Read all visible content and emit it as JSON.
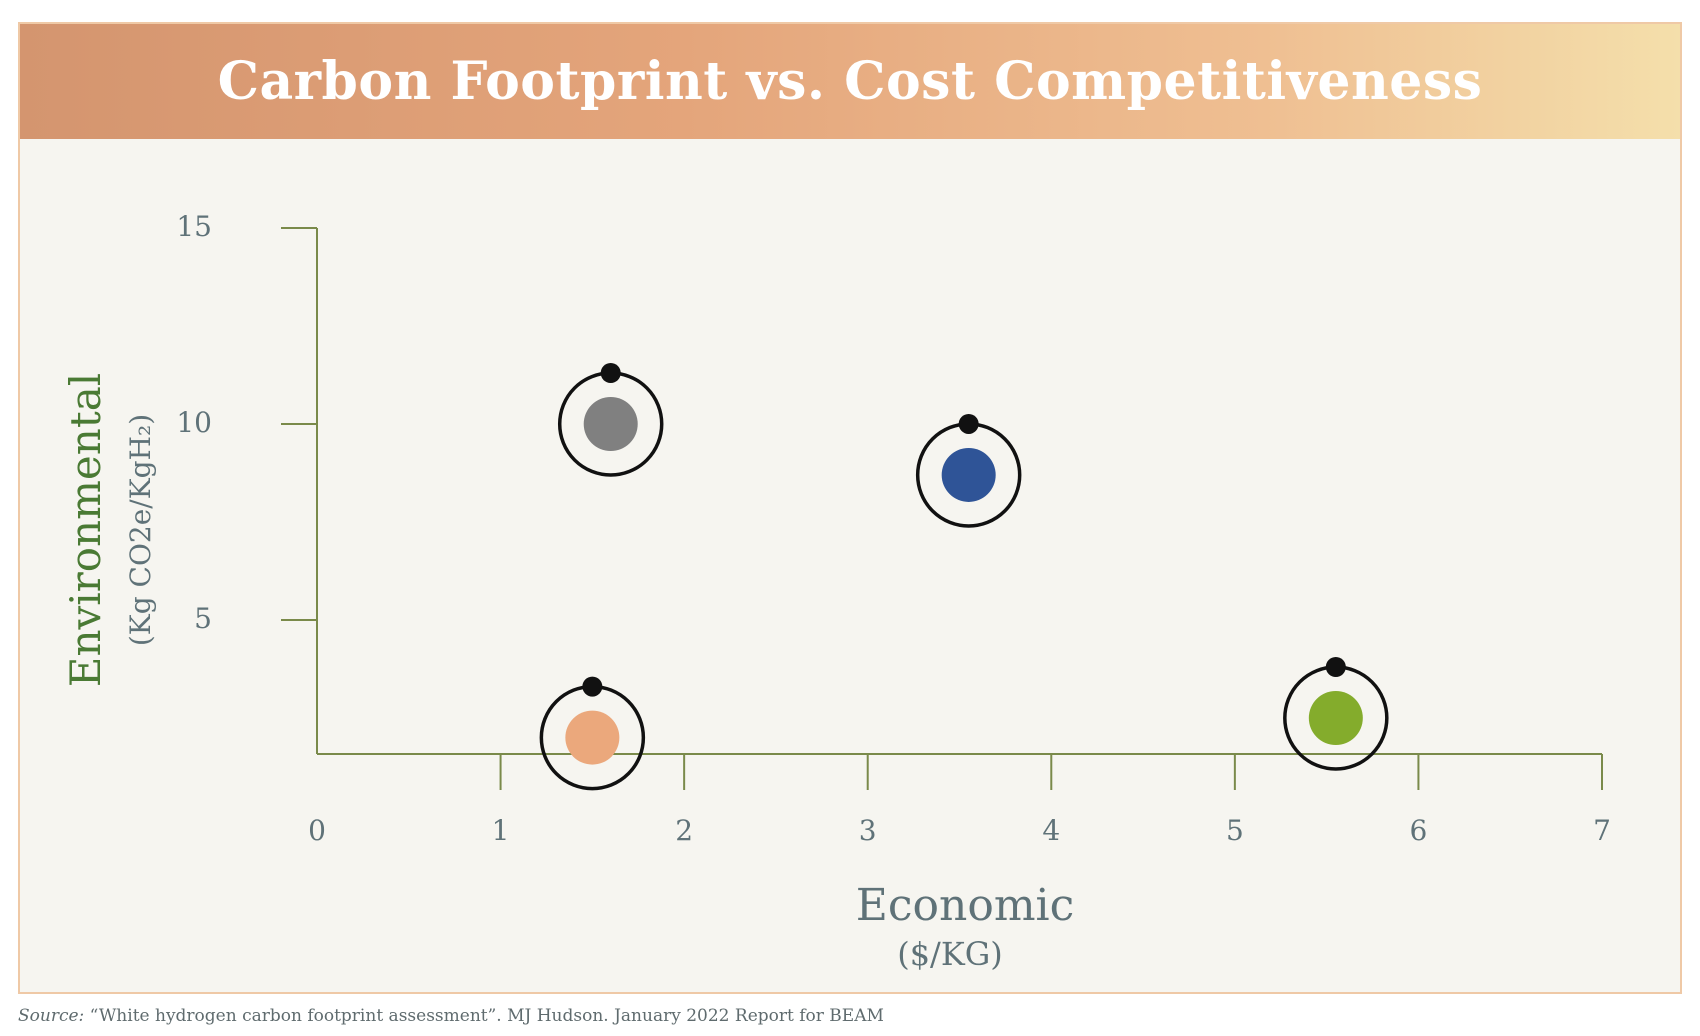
{
  "header": {
    "title": "Carbon Footprint vs. Cost Competitiveness"
  },
  "footer": {
    "source_label": "Source:",
    "source_text": "“White hydrogen carbon footprint assessment”. MJ Hudson. January 2022 Report for BEAM"
  },
  "colors": {
    "axis": "#7a8a4a",
    "ring": "#111111",
    "title_green": "#4a7a34",
    "label_gray": "#5f7278"
  },
  "chart_data": {
    "type": "scatter",
    "ylabel": "Environmental",
    "ylabel_unit": "(Kg CO2e/KgH₂)",
    "xlabel": "Economic",
    "xlabel_unit": "($/KG)",
    "xlim": [
      0,
      7
    ],
    "ylim": [
      1.5,
      15
    ],
    "x_ticks": [
      0,
      1,
      2,
      3,
      4,
      5,
      6,
      7
    ],
    "y_ticks": [
      5,
      10,
      15
    ],
    "grid": false,
    "points": [
      {
        "x": 1.6,
        "y": 10.0,
        "color": "#808080"
      },
      {
        "x": 3.55,
        "y": 8.7,
        "color": "#2f5497"
      },
      {
        "x": 1.5,
        "y": 2.0,
        "color": "#eba87c"
      },
      {
        "x": 5.55,
        "y": 2.5,
        "color": "#84ac2c"
      }
    ]
  }
}
